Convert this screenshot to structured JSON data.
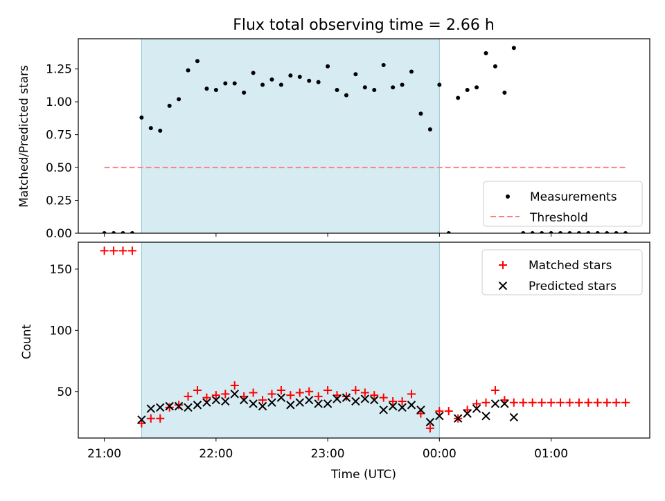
{
  "chart_data": [
    {
      "type": "scatter",
      "title": "Flux total observing time = 2.66 h",
      "ylabel": "Matched/Predicted stars",
      "xlabel": "",
      "ylim": [
        0,
        1.48
      ],
      "xlim": [
        "20:46",
        "01:53"
      ],
      "x_ticks": [
        "21:00",
        "22:00",
        "23:00",
        "00:00",
        "01:00"
      ],
      "y_ticks": [
        "0.00",
        "0.25",
        "0.50",
        "0.75",
        "1.00",
        "1.25"
      ],
      "shaded_region": [
        "21:20",
        "00:00"
      ],
      "legend_position": "lower right",
      "series": [
        {
          "name": "Measurements",
          "marker": "dot",
          "color": "#000000",
          "points": [
            [
              "21:00",
              0.0
            ],
            [
              "21:05",
              0.0
            ],
            [
              "21:10",
              0.0
            ],
            [
              "21:15",
              0.0
            ],
            [
              "21:20",
              0.88
            ],
            [
              "21:25",
              0.8
            ],
            [
              "21:30",
              0.78
            ],
            [
              "21:35",
              0.97
            ],
            [
              "21:40",
              1.02
            ],
            [
              "21:45",
              1.24
            ],
            [
              "21:50",
              1.31
            ],
            [
              "21:55",
              1.1
            ],
            [
              "22:00",
              1.09
            ],
            [
              "22:05",
              1.14
            ],
            [
              "22:10",
              1.14
            ],
            [
              "22:15",
              1.07
            ],
            [
              "22:20",
              1.22
            ],
            [
              "22:25",
              1.13
            ],
            [
              "22:30",
              1.17
            ],
            [
              "22:35",
              1.13
            ],
            [
              "22:40",
              1.2
            ],
            [
              "22:45",
              1.19
            ],
            [
              "22:50",
              1.16
            ],
            [
              "22:55",
              1.15
            ],
            [
              "23:00",
              1.27
            ],
            [
              "23:05",
              1.09
            ],
            [
              "23:10",
              1.05
            ],
            [
              "23:15",
              1.21
            ],
            [
              "23:20",
              1.11
            ],
            [
              "23:25",
              1.09
            ],
            [
              "23:30",
              1.28
            ],
            [
              "23:35",
              1.11
            ],
            [
              "23:40",
              1.13
            ],
            [
              "23:45",
              1.23
            ],
            [
              "23:50",
              0.91
            ],
            [
              "23:55",
              0.79
            ],
            [
              "00:00",
              1.13
            ],
            [
              "00:05",
              0.0
            ],
            [
              "00:10",
              1.03
            ],
            [
              "00:15",
              1.09
            ],
            [
              "00:20",
              1.11
            ],
            [
              "00:25",
              1.37
            ],
            [
              "00:30",
              1.27
            ],
            [
              "00:35",
              1.07
            ],
            [
              "00:40",
              1.41
            ],
            [
              "00:45",
              0.0
            ],
            [
              "00:50",
              0.0
            ],
            [
              "00:55",
              0.0
            ],
            [
              "01:00",
              0.0
            ],
            [
              "01:05",
              0.0
            ],
            [
              "01:10",
              0.0
            ],
            [
              "01:15",
              0.0
            ],
            [
              "01:20",
              0.0
            ],
            [
              "01:25",
              0.0
            ],
            [
              "01:30",
              0.0
            ],
            [
              "01:35",
              0.0
            ],
            [
              "01:40",
              0.0
            ]
          ]
        },
        {
          "name": "Threshold",
          "marker": "dashed-line",
          "color": "#ff7f7f",
          "points": [
            [
              "21:00",
              0.5
            ],
            [
              "01:40",
              0.5
            ]
          ]
        }
      ]
    },
    {
      "type": "scatter",
      "title": "",
      "ylabel": "Count",
      "xlabel": "Time (UTC)",
      "ylim": [
        12,
        172
      ],
      "xlim": [
        "20:46",
        "01:53"
      ],
      "x_ticks": [
        "21:00",
        "22:00",
        "23:00",
        "00:00",
        "01:00"
      ],
      "y_ticks": [
        "50",
        "100",
        "150"
      ],
      "shaded_region": [
        "21:20",
        "00:00"
      ],
      "legend_position": "upper right",
      "series": [
        {
          "name": "Matched stars",
          "marker": "plus",
          "color": "#ff0000",
          "points": [
            [
              "21:00",
              165
            ],
            [
              "21:05",
              165
            ],
            [
              "21:10",
              165
            ],
            [
              "21:15",
              165
            ],
            [
              "21:20",
              24
            ],
            [
              "21:25",
              28
            ],
            [
              "21:30",
              28
            ],
            [
              "21:35",
              37
            ],
            [
              "21:40",
              39
            ],
            [
              "21:45",
              46
            ],
            [
              "21:50",
              51
            ],
            [
              "21:55",
              45
            ],
            [
              "22:00",
              47
            ],
            [
              "22:05",
              48
            ],
            [
              "22:10",
              55
            ],
            [
              "22:15",
              46
            ],
            [
              "22:20",
              49
            ],
            [
              "22:25",
              43
            ],
            [
              "22:30",
              48
            ],
            [
              "22:35",
              51
            ],
            [
              "22:40",
              47
            ],
            [
              "22:45",
              49
            ],
            [
              "22:50",
              50
            ],
            [
              "22:55",
              46
            ],
            [
              "23:00",
              51
            ],
            [
              "23:05",
              47
            ],
            [
              "23:10",
              46
            ],
            [
              "23:15",
              51
            ],
            [
              "23:20",
              49
            ],
            [
              "23:25",
              47
            ],
            [
              "23:30",
              45
            ],
            [
              "23:35",
              42
            ],
            [
              "23:40",
              42
            ],
            [
              "23:45",
              48
            ],
            [
              "23:50",
              32
            ],
            [
              "23:55",
              20
            ],
            [
              "00:00",
              34
            ],
            [
              "00:05",
              34
            ],
            [
              "00:10",
              28
            ],
            [
              "00:15",
              35
            ],
            [
              "00:20",
              40
            ],
            [
              "00:25",
              41
            ],
            [
              "00:30",
              51
            ],
            [
              "00:35",
              43
            ],
            [
              "00:40",
              41
            ],
            [
              "00:45",
              41
            ],
            [
              "00:50",
              41
            ],
            [
              "00:55",
              41
            ],
            [
              "01:00",
              41
            ],
            [
              "01:05",
              41
            ],
            [
              "01:10",
              41
            ],
            [
              "01:15",
              41
            ],
            [
              "01:20",
              41
            ],
            [
              "01:25",
              41
            ],
            [
              "01:30",
              41
            ],
            [
              "01:35",
              41
            ],
            [
              "01:40",
              41
            ]
          ]
        },
        {
          "name": "Predicted stars",
          "marker": "x",
          "color": "#000000",
          "points": [
            [
              "21:20",
              27
            ],
            [
              "21:25",
              36
            ],
            [
              "21:30",
              37
            ],
            [
              "21:35",
              38
            ],
            [
              "21:40",
              38
            ],
            [
              "21:45",
              37
            ],
            [
              "21:50",
              39
            ],
            [
              "21:55",
              41
            ],
            [
              "22:00",
              43
            ],
            [
              "22:05",
              42
            ],
            [
              "22:10",
              48
            ],
            [
              "22:15",
              43
            ],
            [
              "22:20",
              40
            ],
            [
              "22:25",
              38
            ],
            [
              "22:30",
              41
            ],
            [
              "22:35",
              45
            ],
            [
              "22:40",
              39
            ],
            [
              "22:45",
              41
            ],
            [
              "22:50",
              43
            ],
            [
              "22:55",
              40
            ],
            [
              "23:00",
              40
            ],
            [
              "23:05",
              44
            ],
            [
              "23:10",
              45
            ],
            [
              "23:15",
              42
            ],
            [
              "23:20",
              44
            ],
            [
              "23:25",
              43
            ],
            [
              "23:30",
              35
            ],
            [
              "23:35",
              38
            ],
            [
              "23:40",
              37
            ],
            [
              "23:45",
              39
            ],
            [
              "23:50",
              35
            ],
            [
              "23:55",
              25
            ],
            [
              "00:00",
              30
            ],
            [
              "00:10",
              28
            ],
            [
              "00:15",
              32
            ],
            [
              "00:20",
              36
            ],
            [
              "00:25",
              30
            ],
            [
              "00:30",
              40
            ],
            [
              "00:35",
              40
            ],
            [
              "00:40",
              29
            ]
          ]
        }
      ]
    }
  ]
}
